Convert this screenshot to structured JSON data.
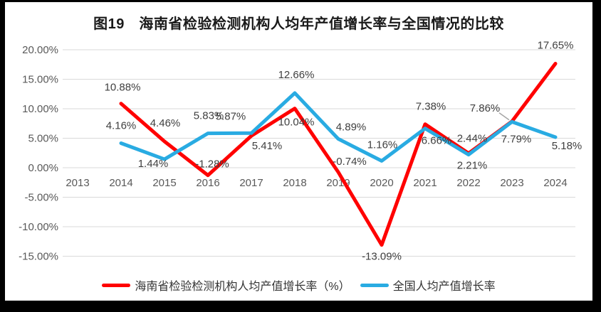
{
  "title": "图19　海南省检验检测机构人均年产值增长率与全国情况的比较",
  "chart_data": {
    "type": "line",
    "categories": [
      "2013",
      "2014",
      "2015",
      "2016",
      "2017",
      "2018",
      "2019",
      "2020",
      "2021",
      "2022",
      "2023",
      "2024"
    ],
    "series": [
      {
        "name": "海南省检验检测机构人均产值增长率（%）",
        "color": "#FF0000",
        "values": [
          null,
          10.88,
          4.46,
          -1.28,
          5.41,
          10.04,
          -0.74,
          -13.09,
          7.38,
          2.44,
          7.86,
          17.65
        ],
        "labels": [
          "",
          "10.88%",
          "4.46%",
          "-1.28%",
          "5.41%",
          "10.04%",
          "-0.74%",
          "-13.09%",
          "7.38%",
          "2.44%",
          "7.86%",
          "17.65%"
        ]
      },
      {
        "name": "全国人均产值增长率",
        "color": "#29ABE2",
        "values": [
          null,
          4.16,
          1.44,
          5.83,
          5.87,
          12.66,
          4.89,
          1.16,
          6.66,
          2.21,
          7.79,
          5.18
        ],
        "labels": [
          "",
          "4.16%",
          "1.44%",
          "5.83%",
          "5.87%",
          "12.66%",
          "4.89%",
          "1.16%",
          "6.66%",
          "2.21%",
          "7.79%",
          "5.18%"
        ]
      }
    ],
    "y_axis": {
      "tick_labels": [
        "20.00%",
        "15.00%",
        "10.00%",
        "5.00%",
        "0.00%",
        "-5.00%",
        "-10.00%",
        "-15.00%"
      ],
      "tick_values": [
        20,
        15,
        10,
        5,
        0,
        -5,
        -10,
        -15
      ],
      "min": -15,
      "max": 20
    },
    "grid": "horizontal",
    "legend_position": "bottom"
  },
  "colors": {
    "background": "#000000",
    "canvas": "#FFFFFF",
    "grid_line": "#D9D9D9",
    "axis_text": "#595959",
    "data_label_text": "#3F3F3F",
    "title_text": "#1A1A1A",
    "legend_text": "#333333",
    "leader_line": "#A6A6A6"
  }
}
